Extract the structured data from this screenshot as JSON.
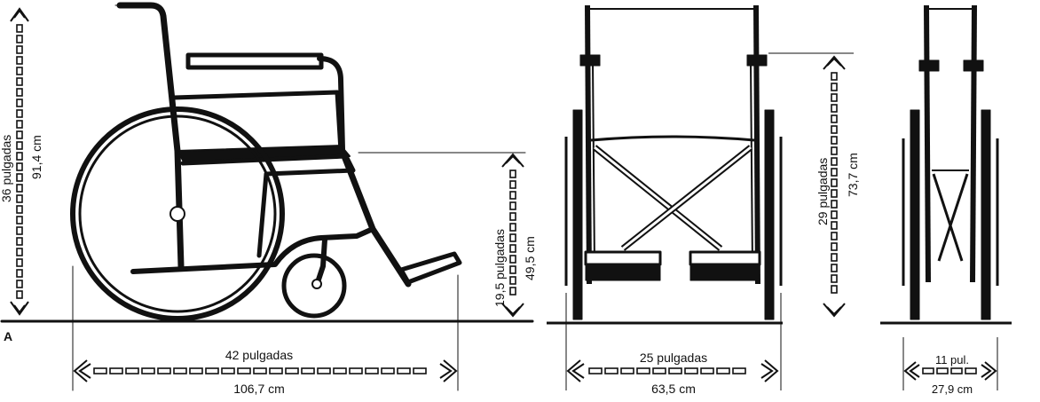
{
  "figure_label": "A",
  "side_view": {
    "height": {
      "imperial": "36 pulgadas",
      "metric": "91,4 cm"
    },
    "seat_height": {
      "imperial": "19,5 pulgadas",
      "metric": "49,5 cm"
    },
    "length": {
      "imperial": "42 pulgadas",
      "metric": "106,7 cm"
    }
  },
  "front_view": {
    "armrest_height": {
      "imperial": "29 pulgadas",
      "metric": "73,7 cm"
    },
    "width": {
      "imperial": "25 pulgadas",
      "metric": "63,5 cm"
    }
  },
  "folded_view": {
    "width": {
      "imperial": "11 pul.",
      "metric": "27,9 cm"
    }
  },
  "colors": {
    "ink": "#111111",
    "paper": "#ffffff"
  }
}
